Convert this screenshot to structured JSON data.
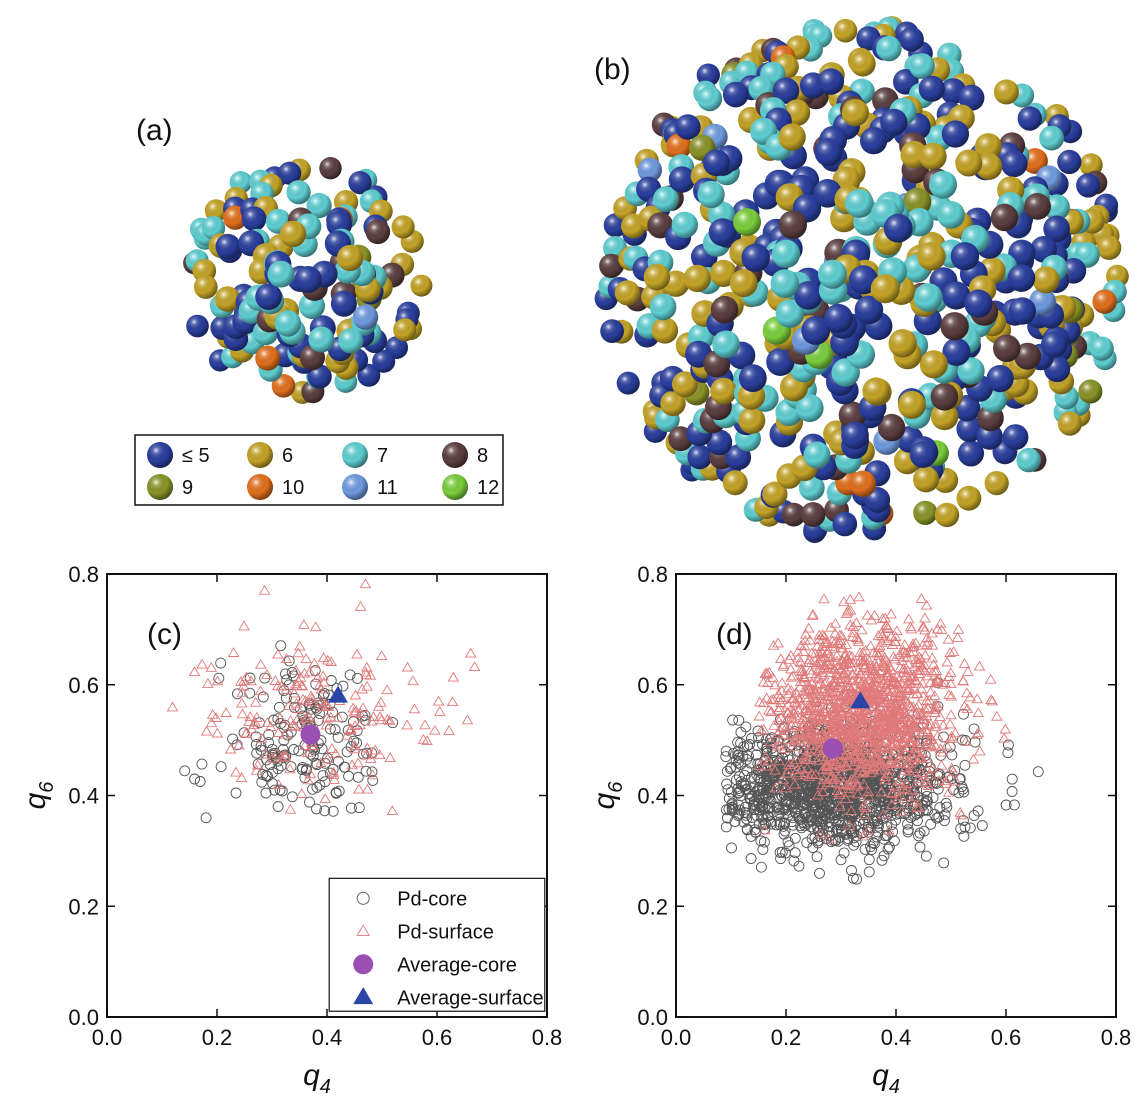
{
  "panels": {
    "a": {
      "label": "(a)"
    },
    "b": {
      "label": "(b)"
    }
  },
  "coordination_legend": [
    {
      "label": "≤ 5",
      "color": "#2a3f9e"
    },
    {
      "label": "6",
      "color": "#c4a427"
    },
    {
      "label": "7",
      "color": "#5fcfd2"
    },
    {
      "label": "8",
      "color": "#5c3f40"
    },
    {
      "label": "9",
      "color": "#8a9428"
    },
    {
      "label": "10",
      "color": "#e2701d"
    },
    {
      "label": "11",
      "color": "#6f9be0"
    },
    {
      "label": "12",
      "color": "#7bcf3d"
    }
  ],
  "sphere_mix": [
    {
      "color": "#2a3f9e",
      "weight": 0.36
    },
    {
      "color": "#c4a427",
      "weight": 0.26
    },
    {
      "color": "#5fcfd2",
      "weight": 0.24
    },
    {
      "color": "#5c3f40",
      "weight": 0.08
    },
    {
      "color": "#8a9428",
      "weight": 0.025
    },
    {
      "color": "#e2701d",
      "weight": 0.02
    },
    {
      "color": "#6f9be0",
      "weight": 0.01
    },
    {
      "color": "#7bcf3d",
      "weight": 0.005
    }
  ],
  "chart_data": [
    {
      "panel": "(c)",
      "type": "scatter",
      "xlabel": "q",
      "xlabel_sub": "4",
      "ylabel": "q",
      "ylabel_sub": "6",
      "xlim": [
        0.0,
        0.8
      ],
      "ylim": [
        0.0,
        0.8
      ],
      "xticks": [
        "0.0",
        "0.2",
        "0.4",
        "0.6",
        "0.8"
      ],
      "yticks": [
        "0.0",
        "0.2",
        "0.4",
        "0.6",
        "0.8"
      ],
      "legend_position": "bottom-right",
      "legend": [
        "Pd-core",
        "Pd-surface",
        "Average-core",
        "Average-surface"
      ],
      "series": [
        {
          "name": "Pd-core",
          "marker": "open-circle",
          "color": "#555555",
          "count": 170,
          "center": [
            0.36,
            0.49
          ],
          "spread": [
            0.075,
            0.07
          ],
          "x_range": [
            0.14,
            0.52
          ],
          "y_range": [
            0.31,
            0.69
          ]
        },
        {
          "name": "Pd-surface",
          "marker": "open-triangle",
          "color": "#e07a7a",
          "count": 190,
          "center": [
            0.38,
            0.55
          ],
          "spread": [
            0.12,
            0.07
          ],
          "x_range": [
            0.1,
            0.77
          ],
          "y_range": [
            0.36,
            0.79
          ]
        },
        {
          "name": "Average-core",
          "marker": "filled-circle",
          "color": "#9b4fb3",
          "points": [
            [
              0.37,
              0.51
            ]
          ]
        },
        {
          "name": "Average-surface",
          "marker": "filled-triangle",
          "color": "#2b44a8",
          "points": [
            [
              0.42,
              0.58
            ]
          ]
        }
      ]
    },
    {
      "panel": "(d)",
      "type": "scatter",
      "xlabel": "q",
      "xlabel_sub": "4",
      "ylabel": "q",
      "ylabel_sub": "6",
      "xlim": [
        0.0,
        0.8
      ],
      "ylim": [
        0.0,
        0.8
      ],
      "xticks": [
        "0.0",
        "0.2",
        "0.4",
        "0.6",
        "0.8"
      ],
      "yticks": [
        "0.0",
        "0.2",
        "0.4",
        "0.6",
        "0.8"
      ],
      "series": [
        {
          "name": "Pd-core",
          "marker": "open-circle",
          "color": "#555555",
          "count": 1300,
          "center": [
            0.28,
            0.42
          ],
          "spread": [
            0.105,
            0.055
          ],
          "x_range": [
            0.09,
            0.69
          ],
          "y_range": [
            0.23,
            0.7
          ]
        },
        {
          "name": "Pd-surface",
          "marker": "open-triangle",
          "color": "#e07a7a",
          "count": 1300,
          "center": [
            0.34,
            0.55
          ],
          "spread": [
            0.085,
            0.075
          ],
          "x_range": [
            0.15,
            0.64
          ],
          "y_range": [
            0.32,
            0.76
          ]
        },
        {
          "name": "Average-core",
          "marker": "filled-circle",
          "color": "#9b4fb3",
          "points": [
            [
              0.285,
              0.485
            ]
          ]
        },
        {
          "name": "Average-surface",
          "marker": "filled-triangle",
          "color": "#2b44a8",
          "points": [
            [
              0.335,
              0.57
            ]
          ]
        }
      ]
    }
  ]
}
